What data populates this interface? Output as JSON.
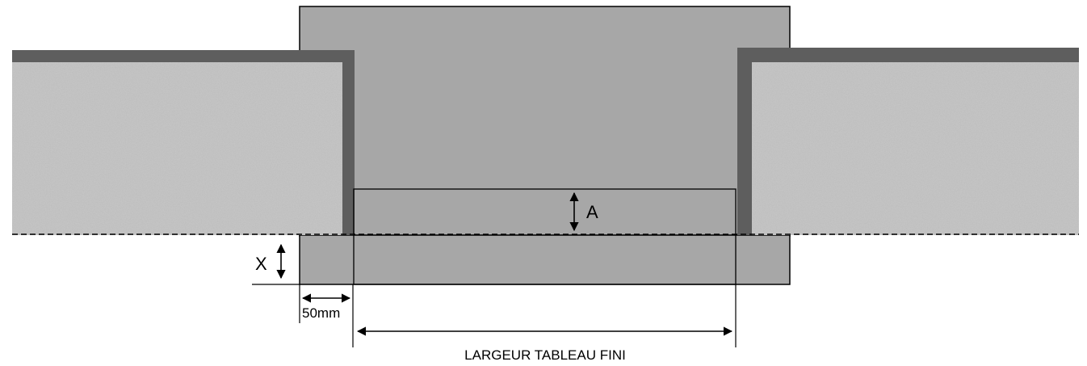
{
  "labels": {
    "dimension_a": "A",
    "dimension_x": "X",
    "offset_50mm": "50mm",
    "finished_width": "LARGEUR TABLEAU FINI"
  },
  "colors": {
    "panel_fill": "#a7a7a7",
    "edge_dark": "#5e5e5e",
    "insulation_base": "#c4c4c4",
    "insulation_speck_dark": "#8c8c8c",
    "insulation_speck_light": "#e6e6e6",
    "line": "#000000"
  }
}
